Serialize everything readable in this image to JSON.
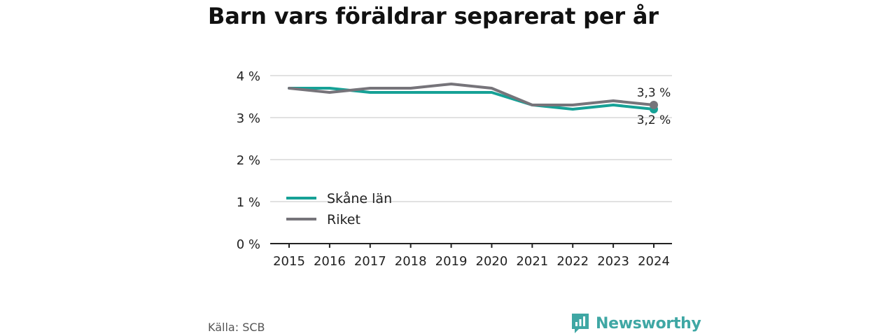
{
  "title": "Barn vars föräldrar separerat per år",
  "source": "Källa: SCB",
  "brand": {
    "name": "Newsworthy",
    "icon": "newsworthy-logo-icon"
  },
  "colors": {
    "skane": "#16a196",
    "riket": "#76747a",
    "grid": "#d9d9d9",
    "axis": "#222222",
    "brand": "#3fa7a4"
  },
  "chart_data": {
    "type": "line",
    "title": "Barn vars föräldrar separerat per år",
    "x": [
      2015,
      2016,
      2017,
      2018,
      2019,
      2020,
      2021,
      2022,
      2023,
      2024
    ],
    "ylim": [
      0,
      4
    ],
    "yticks": [
      0,
      1,
      2,
      3,
      4
    ],
    "ytick_labels": [
      "0 %",
      "1 %",
      "2 %",
      "3 %",
      "4 %"
    ],
    "grid": true,
    "legend": "lower-left",
    "series": [
      {
        "name": "Skåne län",
        "color": "#16a196",
        "values": [
          3.7,
          3.7,
          3.6,
          3.6,
          3.6,
          3.6,
          3.3,
          3.2,
          3.3,
          3.2
        ],
        "end_label": "3,2 %"
      },
      {
        "name": "Riket",
        "color": "#76747a",
        "values": [
          3.7,
          3.6,
          3.7,
          3.7,
          3.8,
          3.7,
          3.3,
          3.3,
          3.4,
          3.3
        ],
        "end_label": "3,3 %"
      }
    ]
  }
}
